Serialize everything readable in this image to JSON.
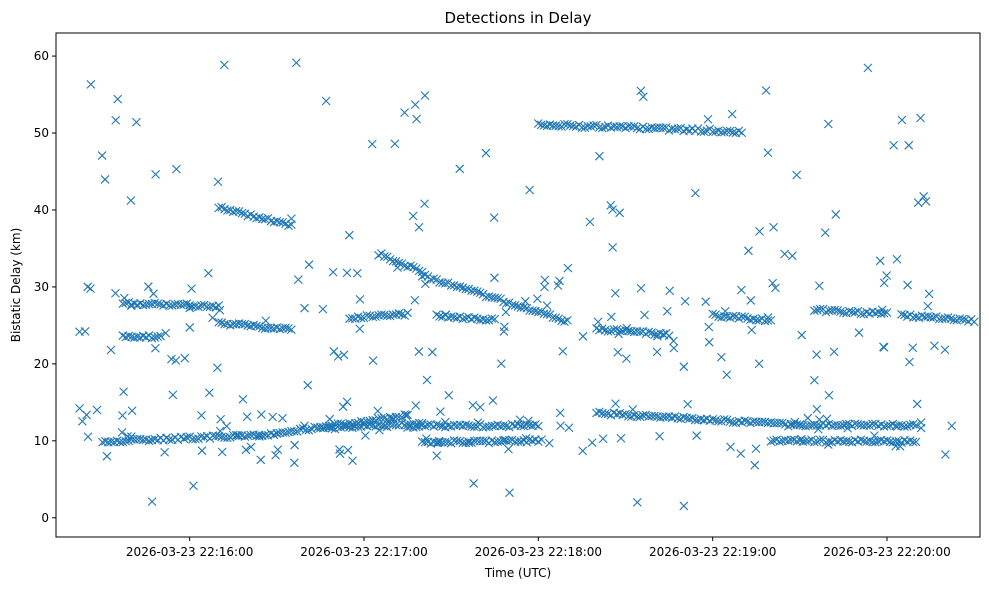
{
  "chart_data": {
    "type": "scatter",
    "title": "Detections in Delay",
    "xlabel": "Time (UTC)",
    "ylabel": "Bistatic Delay (km)",
    "x_range_minutes": [
      "2026-03-23 22:15:14",
      "2026-03-23 22:20:32"
    ],
    "ylim": [
      -2.5,
      63
    ],
    "x_ticks": [
      "2026-03-23 22:16:00",
      "2026-03-23 22:17:00",
      "2026-03-23 22:18:00",
      "2026-03-23 22:19:00",
      "2026-03-23 22:20:00"
    ],
    "y_ticks": [
      0,
      10,
      20,
      30,
      40,
      50,
      60
    ],
    "marker": "x",
    "color": "#1f77b4",
    "grid": false,
    "tracks": [
      {
        "from": [
          "2026-03-23 22:15:30",
          9.9
        ],
        "to": [
          "2026-03-23 22:16:30",
          10.8
        ]
      },
      {
        "from": [
          "2026-03-23 22:16:30",
          11.0
        ],
        "to": [
          "2026-03-23 22:17:15",
          13.3
        ]
      },
      {
        "from": [
          "2026-03-23 22:16:45",
          11.6
        ],
        "to": [
          "2026-03-23 22:17:20",
          12.3
        ]
      },
      {
        "from": [
          "2026-03-23 22:17:15",
          11.9
        ],
        "to": [
          "2026-03-23 22:18:00",
          12.0
        ]
      },
      {
        "from": [
          "2026-03-23 22:17:20",
          9.8
        ],
        "to": [
          "2026-03-23 22:18:00",
          10.0
        ]
      },
      {
        "from": [
          "2026-03-23 22:18:20",
          13.6
        ],
        "to": [
          "2026-03-23 22:19:30",
          12.0
        ]
      },
      {
        "from": [
          "2026-03-23 22:19:30",
          12.1
        ],
        "to": [
          "2026-03-23 22:20:10",
          12.0
        ]
      },
      {
        "from": [
          "2026-03-23 22:19:20",
          10.0
        ],
        "to": [
          "2026-03-23 22:20:10",
          9.9
        ]
      },
      {
        "from": [
          "2026-03-23 22:15:37",
          27.9
        ],
        "to": [
          "2026-03-23 22:16:10",
          27.5
        ]
      },
      {
        "from": [
          "2026-03-23 22:15:37",
          23.5
        ],
        "to": [
          "2026-03-23 22:15:50",
          23.5
        ]
      },
      {
        "from": [
          "2026-03-23 22:16:10",
          25.3
        ],
        "to": [
          "2026-03-23 22:16:35",
          24.5
        ]
      },
      {
        "from": [
          "2026-03-23 22:16:10",
          40.3
        ],
        "to": [
          "2026-03-23 22:16:35",
          38.0
        ]
      },
      {
        "from": [
          "2026-03-23 22:16:55",
          26.0
        ],
        "to": [
          "2026-03-23 22:17:15",
          26.5
        ]
      },
      {
        "from": [
          "2026-03-23 22:17:05",
          34.3
        ],
        "to": [
          "2026-03-23 22:17:20",
          32.0
        ]
      },
      {
        "from": [
          "2026-03-23 22:17:20",
          31.5
        ],
        "to": [
          "2026-03-23 22:18:10",
          25.5
        ]
      },
      {
        "from": [
          "2026-03-23 22:17:25",
          26.3
        ],
        "to": [
          "2026-03-23 22:17:45",
          25.7
        ]
      },
      {
        "from": [
          "2026-03-23 22:18:00",
          51.1
        ],
        "to": [
          "2026-03-23 22:19:10",
          50.2
        ]
      },
      {
        "from": [
          "2026-03-23 22:18:20",
          24.5
        ],
        "to": [
          "2026-03-23 22:18:45",
          23.8
        ]
      },
      {
        "from": [
          "2026-03-23 22:19:00",
          26.3
        ],
        "to": [
          "2026-03-23 22:19:20",
          25.7
        ]
      },
      {
        "from": [
          "2026-03-23 22:19:35",
          27.0
        ],
        "to": [
          "2026-03-23 22:20:00",
          26.5
        ]
      },
      {
        "from": [
          "2026-03-23 22:20:05",
          26.3
        ],
        "to": [
          "2026-03-23 22:20:30",
          25.6
        ]
      }
    ],
    "scattered_points_note": "plus roughly 270 scattered detections between 0 and 60 km over the same time span"
  }
}
